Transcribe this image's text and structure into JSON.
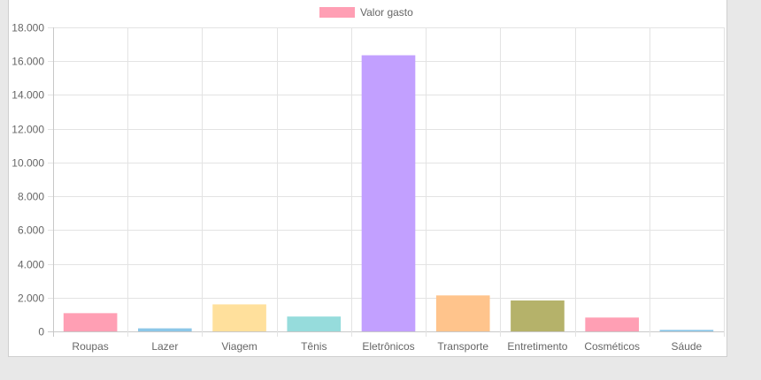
{
  "chart_data": {
    "type": "bar",
    "title": "",
    "xlabel": "",
    "ylabel": "",
    "categories": [
      "Roupas",
      "Lazer",
      "Viagem",
      "Tênis",
      "Eletrônicos",
      "Transporte",
      "Entretimento",
      "Cosméticos",
      "Sáude"
    ],
    "series": [
      {
        "name": "Valor gasto",
        "values": [
          1080,
          180,
          1600,
          880,
          16350,
          2130,
          1830,
          820,
          90
        ],
        "colors": [
          "#ff9fb4",
          "#8cc7e8",
          "#ffe09c",
          "#96dcdc",
          "#c2a0ff",
          "#ffc48c",
          "#b5b26a",
          "#ff9fb4",
          "#8cc7e8"
        ]
      }
    ],
    "ylim": [
      0,
      18000
    ],
    "y_ticks": [
      "0",
      "2.000",
      "4.000",
      "6.000",
      "8.000",
      "10.000",
      "12.000",
      "14.000",
      "16.000",
      "18.000"
    ],
    "grid": true,
    "legend": "top-center",
    "grid_color": "#e3e3e3",
    "axis_color": "#c8c8c8",
    "text_color": "#666666"
  }
}
